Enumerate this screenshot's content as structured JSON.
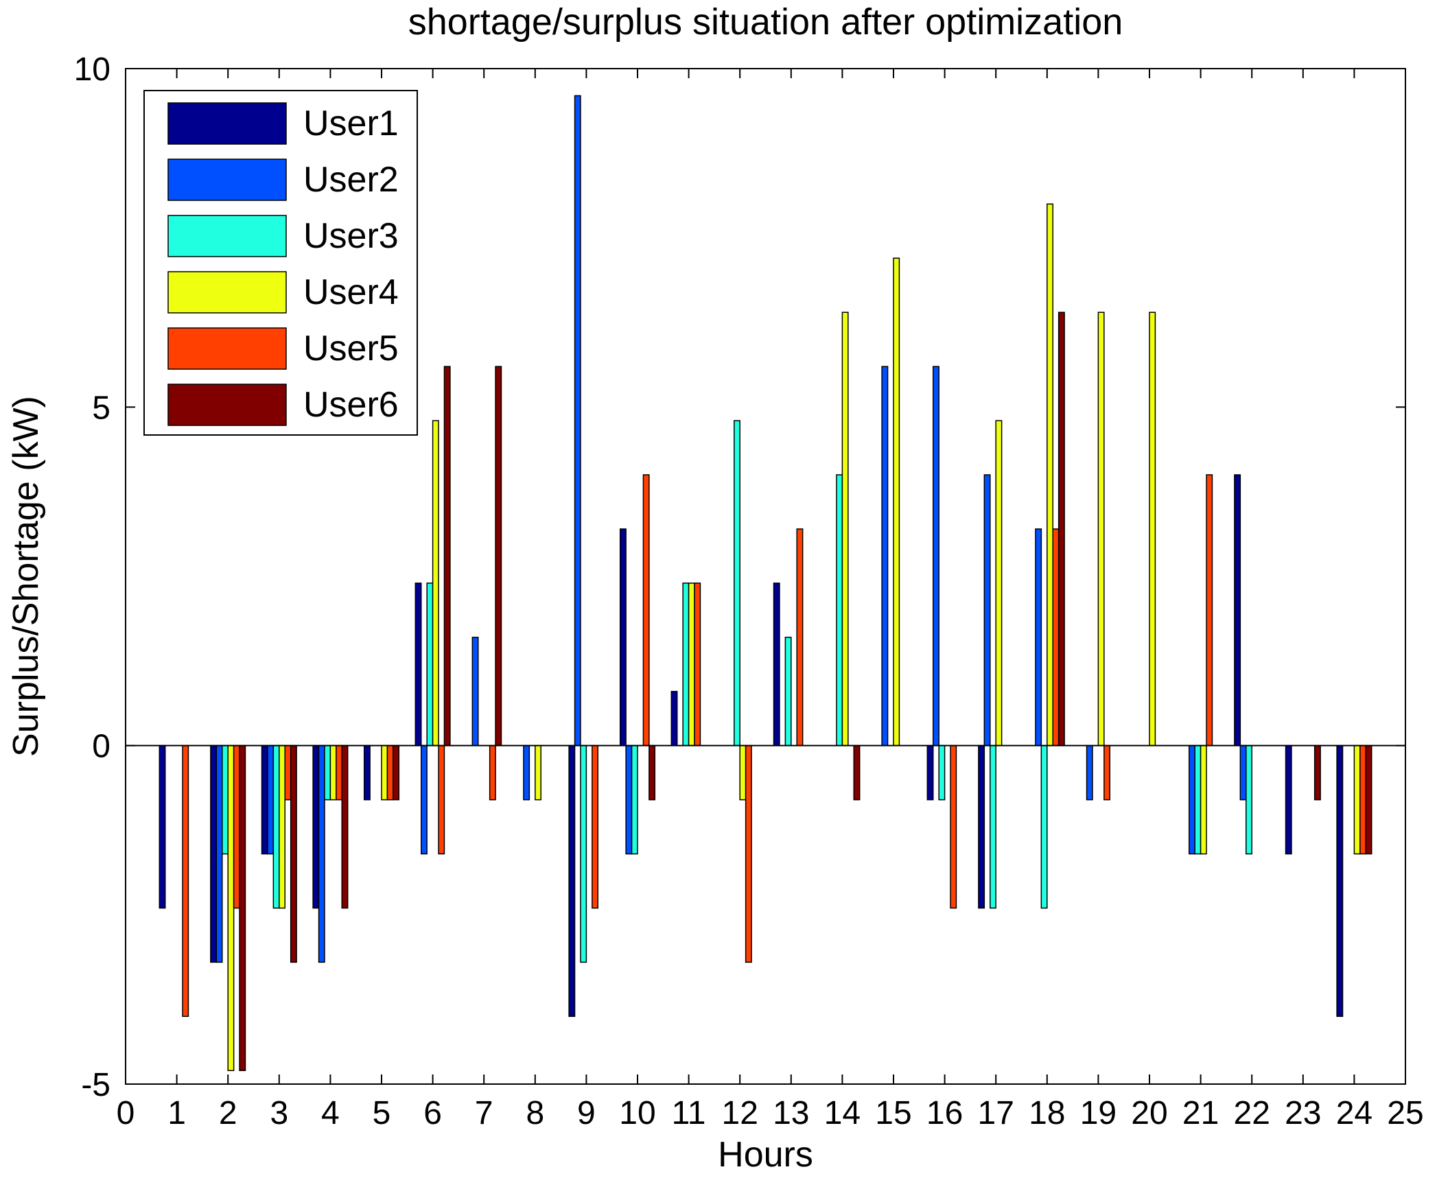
{
  "chart_data": {
    "type": "bar",
    "title": "shortage/surplus situation after optimization",
    "xlabel": "Hours",
    "ylabel": "Surplus/Shortage (kW)",
    "xlim": [
      0,
      25
    ],
    "ylim": [
      -5,
      10
    ],
    "xticks": [
      0,
      1,
      2,
      3,
      4,
      5,
      6,
      7,
      8,
      9,
      10,
      11,
      12,
      13,
      14,
      15,
      16,
      17,
      18,
      19,
      20,
      21,
      22,
      23,
      24,
      25
    ],
    "yticks": [
      -5,
      0,
      5,
      10
    ],
    "legend_position": "top-left",
    "categories": [
      1,
      2,
      3,
      4,
      5,
      6,
      7,
      8,
      9,
      10,
      11,
      12,
      13,
      14,
      15,
      16,
      17,
      18,
      19,
      20,
      21,
      22,
      23,
      24
    ],
    "series": [
      {
        "name": "User1",
        "color": "#00008F",
        "values": [
          -2.4,
          -3.2,
          -1.6,
          -2.4,
          -0.8,
          2.4,
          0,
          0,
          -4.0,
          3.2,
          0.8,
          0,
          2.4,
          0,
          0,
          -0.8,
          -2.4,
          0,
          0,
          0,
          0,
          4.0,
          -1.6,
          -4.0
        ]
      },
      {
        "name": "User2",
        "color": "#0050FF",
        "values": [
          0,
          -3.2,
          -1.6,
          -3.2,
          0,
          -1.6,
          1.6,
          -0.8,
          9.6,
          -1.6,
          0,
          0,
          0,
          0,
          5.6,
          5.6,
          4.0,
          3.2,
          -0.8,
          0,
          -1.6,
          -0.8,
          0,
          0
        ]
      },
      {
        "name": "User3",
        "color": "#20FFDF",
        "values": [
          0,
          -1.6,
          -2.4,
          -0.8,
          0,
          2.4,
          0,
          0,
          -3.2,
          -1.6,
          2.4,
          4.8,
          1.6,
          4.0,
          0,
          -0.8,
          -2.4,
          -2.4,
          0,
          0,
          -1.6,
          -1.6,
          0,
          0
        ]
      },
      {
        "name": "User4",
        "color": "#EFFF10",
        "values": [
          0,
          -4.8,
          -2.4,
          -0.8,
          -0.8,
          4.8,
          0,
          -0.8,
          0,
          0,
          2.4,
          -0.8,
          0,
          6.4,
          7.2,
          0,
          4.8,
          8.0,
          6.4,
          6.4,
          -1.6,
          0,
          0,
          -1.6
        ]
      },
      {
        "name": "User5",
        "color": "#FF4000",
        "values": [
          -4.0,
          -2.4,
          -0.8,
          -0.8,
          -0.8,
          -1.6,
          -0.8,
          0,
          -2.4,
          4.0,
          2.4,
          -3.2,
          3.2,
          0,
          0,
          -2.4,
          0,
          3.2,
          -0.8,
          0,
          4.0,
          0,
          0,
          -1.6
        ]
      },
      {
        "name": "User6",
        "color": "#800000",
        "values": [
          0,
          -4.8,
          -3.2,
          -2.4,
          -0.8,
          5.6,
          5.6,
          0,
          0,
          -0.8,
          0,
          0,
          0,
          -0.8,
          0,
          0,
          0,
          6.4,
          0,
          0,
          0,
          0,
          -0.8,
          -1.6
        ]
      }
    ]
  }
}
